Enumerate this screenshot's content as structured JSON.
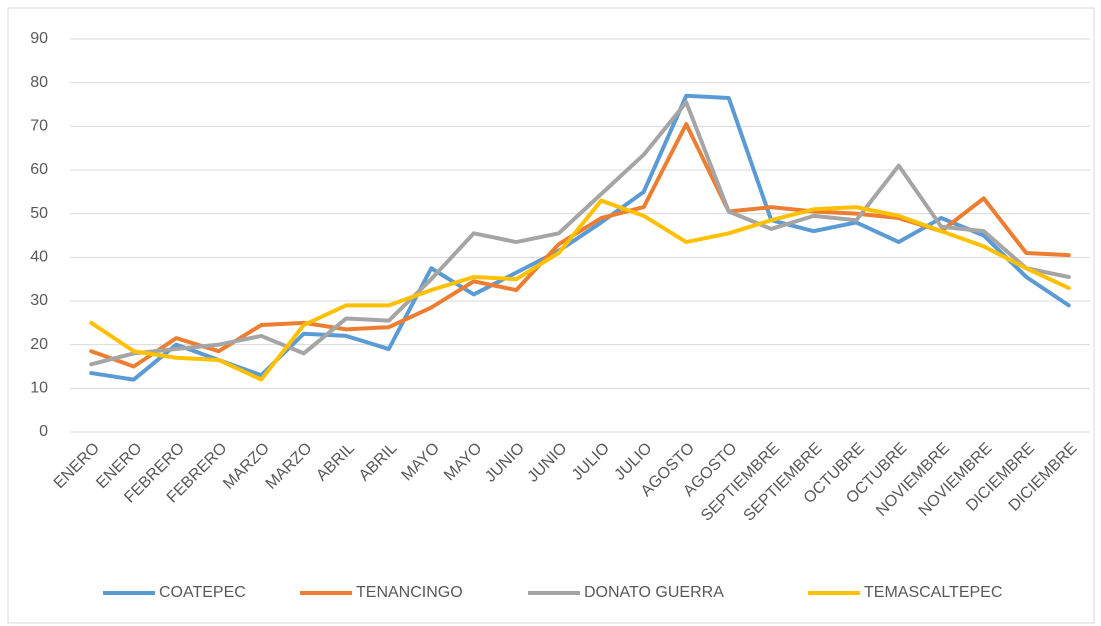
{
  "chart_data": {
    "type": "line",
    "categories": [
      "ENERO",
      "ENERO",
      "FEBRERO",
      "FEBRERO",
      "MARZO",
      "MARZO",
      "ABRIL",
      "ABRIL",
      "MAYO",
      "MAYO",
      "JUNIO",
      "JUNIO",
      "JULIO",
      "JULIO",
      "AGOSTO",
      "AGOSTO",
      "SEPTIEMBRE",
      "SEPTIEMBRE",
      "OCTUBRE",
      "OCTUBRE",
      "NOVIEMBRE",
      "NOVIEMBRE",
      "DICIEMBRE",
      "DICIEMBRE"
    ],
    "series": [
      {
        "name": "COATEPEC",
        "color": "#5b9bd5",
        "values": [
          13.5,
          12,
          20,
          16.5,
          13,
          22.5,
          22,
          19,
          37.5,
          31.5,
          36.5,
          41.5,
          48,
          55,
          77,
          76.5,
          48.5,
          46,
          48,
          43.5,
          49,
          45,
          35.5,
          29
        ]
      },
      {
        "name": "TENANCINGO",
        "color": "#ed7d31",
        "values": [
          18.5,
          15,
          21.5,
          18.5,
          24.5,
          25,
          23.5,
          24,
          28.5,
          34.5,
          32.5,
          43,
          49,
          51.5,
          70.5,
          50.5,
          51.5,
          50.5,
          50,
          49,
          46,
          53.5,
          41,
          40.5
        ]
      },
      {
        "name": "DONATO GUERRA",
        "color": "#a5a5a5",
        "values": [
          15.5,
          18,
          19,
          20,
          22,
          18,
          26,
          25.5,
          35,
          45.5,
          43.5,
          45.5,
          54.5,
          63.5,
          75.5,
          50.5,
          46.5,
          49.5,
          48.5,
          61,
          47,
          46,
          37.5,
          35.5
        ]
      },
      {
        "name": "TEMASCALTEPEC",
        "color": "#ffc000",
        "values": [
          25,
          18.5,
          17,
          16.5,
          12,
          24.5,
          29,
          29,
          32.5,
          35.5,
          35,
          41,
          53,
          49.5,
          43.5,
          45.5,
          48.5,
          51,
          51.5,
          49.5,
          46,
          42.5,
          37.5,
          33
        ]
      }
    ],
    "ylim": [
      0,
      90
    ],
    "yticks": [
      0,
      10,
      20,
      30,
      40,
      50,
      60,
      70,
      80,
      90
    ],
    "grid": true,
    "legend": "bottom"
  }
}
